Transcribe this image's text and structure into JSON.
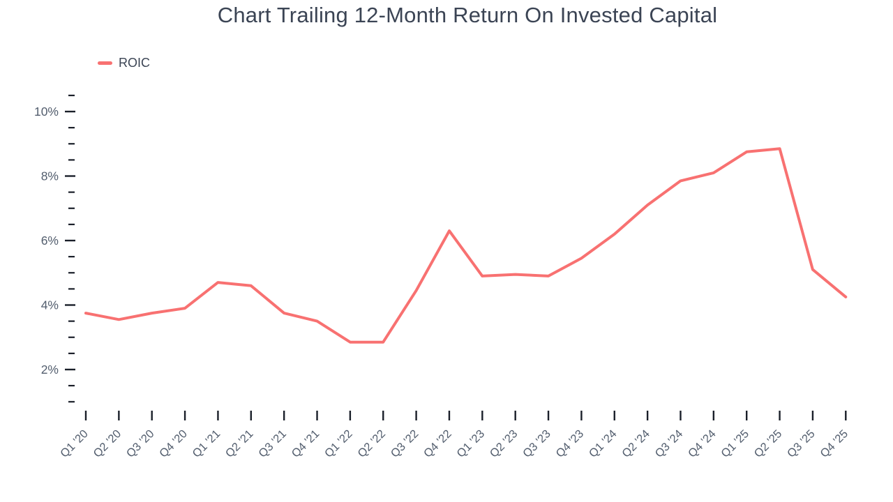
{
  "chart": {
    "title": "Chart Trailing 12-Month Return On Invested Capital",
    "legend_label": "ROIC"
  },
  "chart_data": {
    "type": "line",
    "title": "Chart Trailing 12-Month Return On Invested Capital",
    "legend": [
      "ROIC"
    ],
    "legend_position": "top-left",
    "grid": false,
    "unit": "percent",
    "categories": [
      "Q1 '20",
      "Q2 '20",
      "Q3 '20",
      "Q4 '20",
      "Q1 '21",
      "Q2 '21",
      "Q3 '21",
      "Q4 '21",
      "Q1 '22",
      "Q2 '22",
      "Q3 '22",
      "Q4 '22",
      "Q1 '23",
      "Q2 '23",
      "Q3 '23",
      "Q4 '23",
      "Q1 '24",
      "Q2 '24",
      "Q3 '24",
      "Q4 '24",
      "Q1 '25",
      "Q2 '25",
      "Q3 '25",
      "Q4 '25"
    ],
    "series": [
      {
        "name": "ROIC",
        "color": "#F87171",
        "values": [
          3.75,
          3.55,
          3.75,
          3.9,
          4.7,
          4.6,
          3.75,
          3.5,
          2.85,
          2.85,
          4.45,
          6.3,
          4.9,
          4.95,
          4.9,
          5.45,
          6.2,
          7.1,
          7.85,
          8.1,
          8.75,
          8.85,
          5.1,
          4.25
        ]
      }
    ],
    "xlabel": "",
    "ylabel": "",
    "y_axis": {
      "major_ticks": [
        2,
        4,
        6,
        8,
        10
      ],
      "major_tick_labels": [
        "2%",
        "4%",
        "6%",
        "8%",
        "10%"
      ],
      "minor_tick_step": 0.5,
      "min": 1.0,
      "max": 10.5
    }
  },
  "colors": {
    "line": "#F87171",
    "title_text": "#3B4454",
    "axis_text": "#535E6E",
    "tick": "#1A1F29",
    "background": "#FFFFFF"
  }
}
